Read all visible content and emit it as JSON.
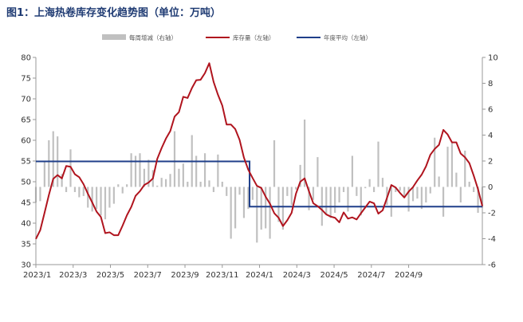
{
  "title": "图1：上海热卷库存变化趋势图（单位：万吨）",
  "colors": {
    "inventory": "#b0141e",
    "average": "#1f3f8a",
    "weekly": "#c0c0c0",
    "axis": "#999999",
    "title": "#1f3b73"
  },
  "chart_data": {
    "type": "bar+line",
    "title": "图1：上海热卷库存变化趋势图（单位：万吨）",
    "legend": {
      "placement": "top",
      "items": [
        {
          "key": "weekly",
          "label": "每周增减（右轴）"
        },
        {
          "key": "inventory",
          "label": "库存量（左轴）"
        },
        {
          "key": "average",
          "label": "年度平均（左轴）"
        }
      ]
    },
    "left_axis": {
      "min": 30,
      "max": 80,
      "ticks": [
        30,
        35,
        40,
        45,
        50,
        55,
        60,
        65,
        70,
        75,
        80
      ]
    },
    "right_axis": {
      "min": -6,
      "max": 10,
      "ticks": [
        -6,
        -4,
        -2,
        0,
        2,
        4,
        6,
        8,
        10
      ]
    },
    "x_range": [
      "2023-01",
      "2024-11"
    ],
    "x_tick_labels": [
      "2023/1",
      "2023/3",
      "2023/5",
      "2023/7",
      "2023/9",
      "2023/11",
      "2024/1",
      "2024/3",
      "2024/5",
      "2024/7",
      "2024/9"
    ],
    "grid": false,
    "series": [
      {
        "name": "库存量（左轴）",
        "axis": "left",
        "type": "line",
        "values": [
          36.2,
          38.3,
          42.5,
          46.8,
          50.7,
          51.6,
          50.8,
          53.8,
          53.6,
          51.8,
          51.1,
          49.4,
          47.1,
          45.0,
          42.8,
          41.5,
          37.6,
          37.8,
          37.1,
          37.1,
          39.4,
          41.9,
          43.9,
          46.6,
          47.7,
          49.2,
          49.8,
          50.8,
          55.5,
          58.1,
          60.4,
          62.2,
          65.7,
          66.8,
          70.5,
          70.2,
          72.6,
          74.5,
          74.6,
          76.2,
          78.6,
          74.1,
          71.0,
          68.4,
          63.8,
          63.8,
          62.7,
          60.1,
          55.8,
          52.9,
          50.9,
          49.0,
          48.5,
          46.4,
          44.7,
          42.4,
          41.3,
          39.3,
          40.7,
          42.5,
          47.1,
          50.0,
          50.8,
          47.7,
          44.8,
          44.1,
          43.2,
          42.1,
          41.6,
          41.3,
          40.2,
          42.6,
          41.1,
          41.4,
          40.9,
          42.4,
          43.8,
          45.2,
          44.8,
          42.3,
          43.1,
          46.1,
          49.2,
          48.6,
          47.3,
          46.2,
          47.6,
          48.7,
          50.3,
          51.7,
          53.7,
          56.5,
          57.9,
          58.9,
          62.5,
          61.4,
          59.5,
          59.5,
          56.8,
          55.9,
          54.5,
          51.5,
          48.2,
          44.1
        ]
      },
      {
        "name": "年度平均（左轴）",
        "axis": "left",
        "type": "step",
        "segments": [
          {
            "year": "2023",
            "value": 54.9
          },
          {
            "year": "2024",
            "value": 44.0
          }
        ]
      },
      {
        "name": "每周增减（右轴）",
        "axis": "right",
        "type": "bar",
        "values": [
          -1.2,
          -1.1,
          2.0,
          3.6,
          4.3,
          3.9,
          1.0,
          -0.4,
          2.9,
          -0.4,
          -0.8,
          -0.7,
          -1.6,
          -1.9,
          -1.7,
          -2.2,
          -2.5,
          -1.6,
          -1.3,
          0.2,
          -0.5,
          0.2,
          2.6,
          2.4,
          2.6,
          1.4,
          2.1,
          1.3,
          0.1,
          0.7,
          0.6,
          1.0,
          4.3,
          1.4,
          1.8,
          0.4,
          4.0,
          2.4,
          0.4,
          2.6,
          0.5,
          -0.4,
          2.5,
          0.4,
          -0.7,
          -4.0,
          -3.2,
          -0.6,
          -2.4,
          -1.7,
          -1.0,
          -4.3,
          -3.3,
          -3.2,
          -4.0,
          3.6,
          -2.7,
          -3.3,
          -0.7,
          -1.4,
          -0.2,
          1.7,
          5.2,
          -1.8,
          -1.0,
          2.3,
          -3.0,
          -2.1,
          -2.4,
          -2.0,
          -1.2,
          -0.4,
          -1.9,
          2.4,
          -0.7,
          -2.2,
          -0.1,
          0.6,
          -0.4,
          3.5,
          0.7,
          -1.4,
          -2.3,
          -0.4,
          -0.3,
          -0.8,
          -1.9,
          -1.1,
          -0.9,
          -1.7,
          -1.2,
          -0.5,
          3.8,
          0.8,
          -2.3,
          3.1,
          3.4,
          1.1,
          -1.2,
          2.8,
          0.4,
          -0.4,
          -2.0,
          -1.6
        ]
      }
    ]
  }
}
